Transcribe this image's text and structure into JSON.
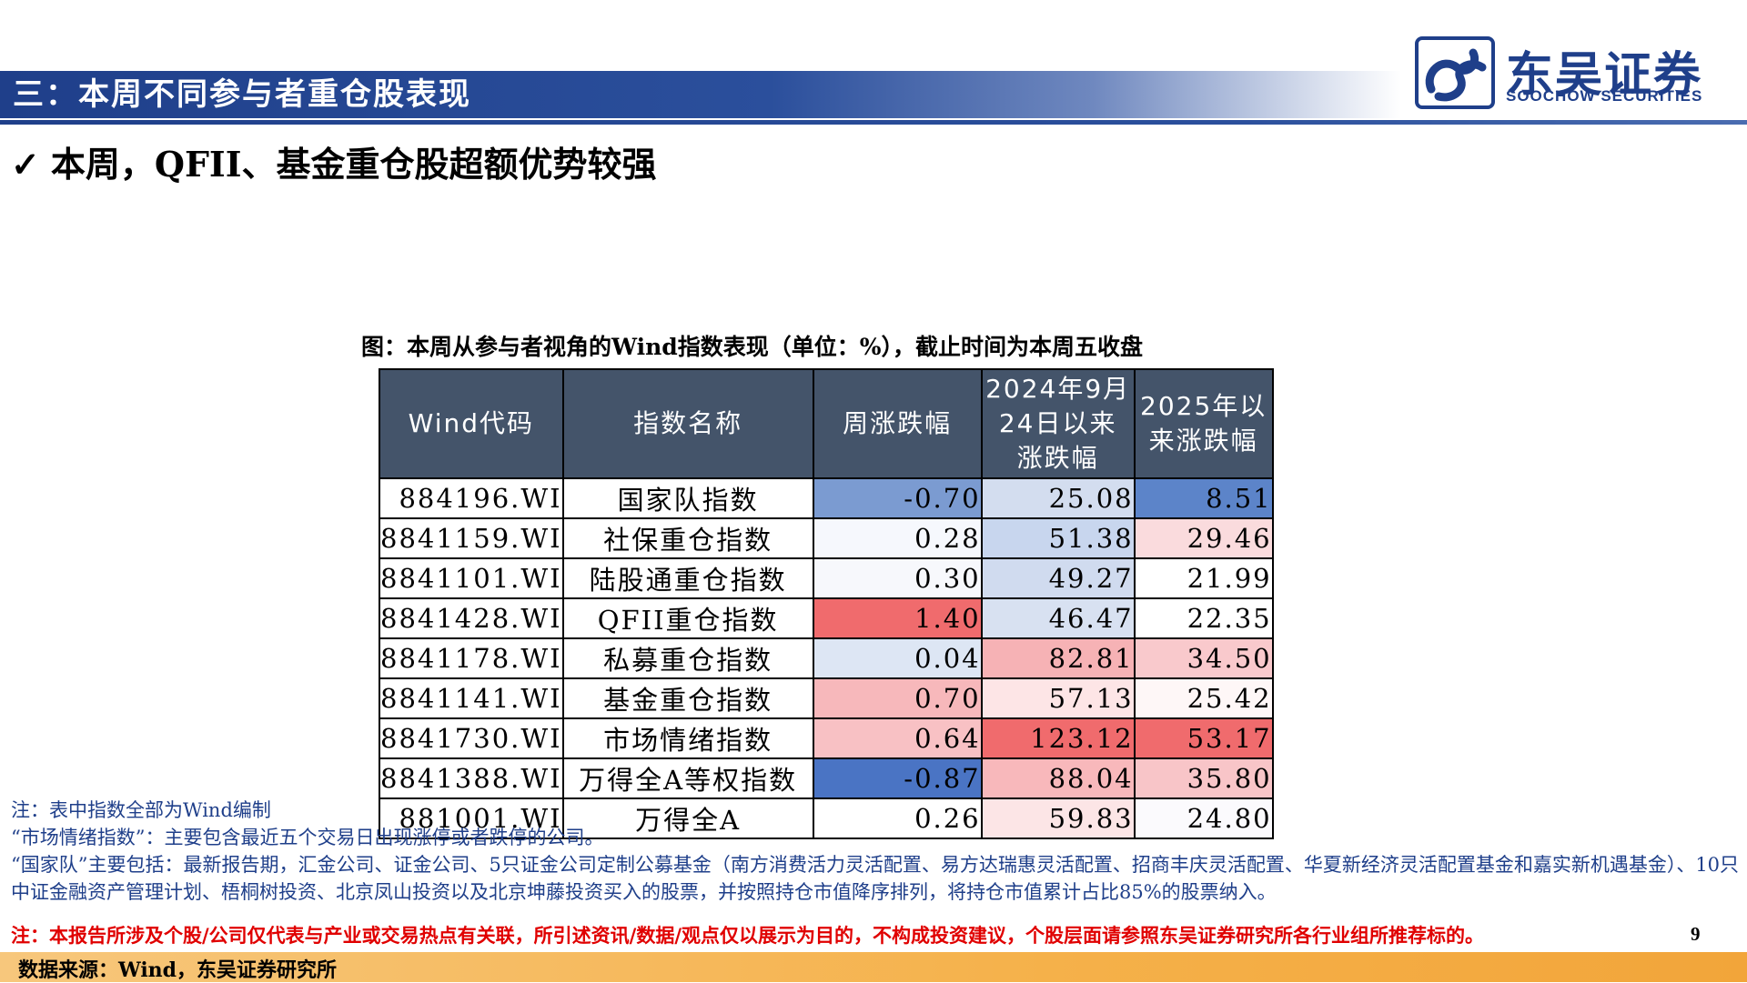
{
  "header": {
    "section_title": "三：本周不同参与者重仓股表现",
    "brand": {
      "name_cn": "东吴证券",
      "name_en": "SOOCHOW SECURITIES"
    }
  },
  "headline": {
    "check": "✓",
    "text": "本周，QFII、基金重仓股超额优势较强"
  },
  "caption": "图：本周从参与者视角的Wind指数表现（单位：%），截止时间为本周五收盘",
  "table": {
    "columns": [
      "Wind代码",
      "指数名称",
      "周涨跌幅",
      "2024年9月24日以来涨跌幅",
      "2025年以来涨跌幅"
    ],
    "column_lines": [
      [
        "Wind代码"
      ],
      [
        "指数名称"
      ],
      [
        "周涨跌幅"
      ],
      [
        "2024年9月",
        "24日以来",
        "涨跌幅"
      ],
      [
        "2025年以",
        "来涨跌幅"
      ]
    ],
    "rows": [
      {
        "code": "884196.WI",
        "name": "国家队指数",
        "weekly": "-0.70",
        "since_0924": "25.08",
        "ytd_2025": "8.51"
      },
      {
        "code": "8841159.WI",
        "name": "社保重仓指数",
        "weekly": "0.28",
        "since_0924": "51.38",
        "ytd_2025": "29.46"
      },
      {
        "code": "8841101.WI",
        "name": "陆股通重仓指数",
        "weekly": "0.30",
        "since_0924": "49.27",
        "ytd_2025": "21.99"
      },
      {
        "code": "8841428.WI",
        "name": "QFII重仓指数",
        "weekly": "1.40",
        "since_0924": "46.47",
        "ytd_2025": "22.35"
      },
      {
        "code": "8841178.WI",
        "name": "私募重仓指数",
        "weekly": "0.04",
        "since_0924": "82.81",
        "ytd_2025": "34.50"
      },
      {
        "code": "8841141.WI",
        "name": "基金重仓指数",
        "weekly": "0.70",
        "since_0924": "57.13",
        "ytd_2025": "25.42"
      },
      {
        "code": "8841730.WI",
        "name": "市场情绪指数",
        "weekly": "0.64",
        "since_0924": "123.12",
        "ytd_2025": "53.17"
      },
      {
        "code": "8841388.WI",
        "name": "万得全A等权指数",
        "weekly": "-0.87",
        "since_0924": "88.04",
        "ytd_2025": "35.80"
      },
      {
        "code": "881001.WI",
        "name": "万得全A",
        "weekly": "0.26",
        "since_0924": "59.83",
        "ytd_2025": "24.80"
      }
    ],
    "cell_colors": {
      "weekly": [
        "#7b9bd1",
        "#f6f8fd",
        "#f7f8fc",
        "#f06b6d",
        "#dde6f4",
        "#f7b8bb",
        "#f8c1c4",
        "#4a74c4",
        "#ffffff"
      ],
      "since_0924": [
        "#d3ddef",
        "#c8d6ee",
        "#d0dbef",
        "#d8e1f1",
        "#f6b2b5",
        "#fde5e6",
        "#f06b6d",
        "#f8b8bb",
        "#fce5e6"
      ],
      "ytd_2025": [
        "#5c84c9",
        "#fadbdd",
        "#ffffff",
        "#ffffff",
        "#f9c9cc",
        "#fef7f7",
        "#f06b6d",
        "#f8c5c8",
        "#fbfafd"
      ]
    }
  },
  "notes": [
    "注：表中指数全部为Wind编制",
    "“市场情绪指数”：主要包含最近五个交易日出现涨停或者跌停的公司。",
    "“国家队”主要包括：最新报告期，汇金公司、证金公司、5只证金公司定制公募基金（南方消费活力灵活配置、易方达瑞惠灵活配置、招商丰庆灵活配置、华夏新经济灵活配置基金和嘉实新机遇基金）、10只中证金融资产管理计划、梧桐树投资、北京凤山投资以及北京坤藤投资买入的股票，并按照持仓市值降序排列，将持仓市值累计占比85%的股票纳入。"
  ],
  "disclaimer": "注：本报告所涉及个股/公司仅代表与产业或交易热点有关联，所引述资讯/数据/观点仅以展示为目的，不构成投资建议，个股层面请参照东吴证券研究所各行业组所推荐标的。",
  "page_number": "9",
  "source": "数据来源：Wind，东吴证券研究所"
}
